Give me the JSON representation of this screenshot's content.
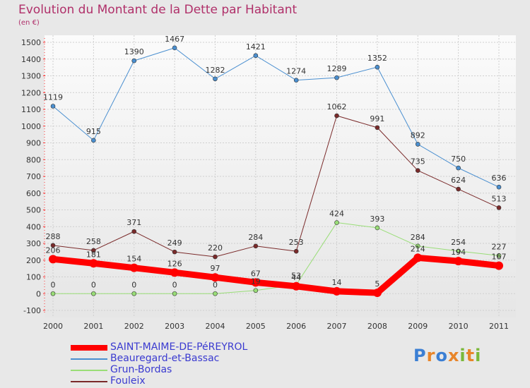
{
  "title": "Evolution du Montant de la Dette par Habitant",
  "subtitle": "(en €)",
  "logo": {
    "letters": [
      "P",
      "r",
      "o",
      "x",
      "i",
      "t",
      "i"
    ],
    "colors": [
      "#3b7fd4",
      "#e8852a",
      "#3b7fd4",
      "#e8852a",
      "#7ab83a",
      "#e8852a",
      "#7ab83a"
    ]
  },
  "chart_data": {
    "type": "line",
    "x": [
      "2000",
      "2001",
      "2002",
      "2003",
      "2004",
      "2005",
      "2006",
      "2007",
      "2008",
      "2009",
      "2010",
      "2011"
    ],
    "y_ticks": [
      "-100",
      "0",
      "100",
      "200",
      "300",
      "400",
      "500",
      "600",
      "700",
      "800",
      "900",
      "1000",
      "1100",
      "1200",
      "1300",
      "1400",
      "1500"
    ],
    "ylim": [
      -100,
      1500
    ],
    "grid": true,
    "legend_position": "bottom-left",
    "series": [
      {
        "name": "SAINT-MAIME-DE-PéREYROL",
        "color": "#ff0000",
        "width": 9,
        "values": [
          206,
          181,
          154,
          126,
          97,
          67,
          44,
          14,
          5,
          214,
          194,
          167
        ],
        "labels": [
          "206",
          "181",
          "154",
          "126",
          "97",
          "67",
          "44",
          "14",
          "5",
          "214",
          "194",
          "167"
        ]
      },
      {
        "name": "Beauregard-et-Bassac",
        "color": "#4a8fd0",
        "width": 1,
        "values": [
          1119,
          915,
          1390,
          1467,
          1282,
          1421,
          1274,
          1289,
          1352,
          892,
          750,
          636
        ],
        "labels": [
          "1119",
          "915",
          "1390",
          "1467",
          "1282",
          "1421",
          "1274",
          "1289",
          "1352",
          "892",
          "750",
          "636"
        ]
      },
      {
        "name": "Grun-Bordas",
        "color": "#99dd77",
        "width": 1,
        "values": [
          0,
          0,
          0,
          0,
          0,
          19,
          53,
          424,
          393,
          284,
          254,
          227
        ],
        "labels": [
          "0",
          "0",
          "0",
          "0",
          "0",
          "19",
          "53",
          "424",
          "393",
          "284",
          "254",
          "227"
        ]
      },
      {
        "name": "Fouleix",
        "color": "#7a2a2a",
        "width": 1,
        "values": [
          288,
          258,
          371,
          249,
          220,
          284,
          253,
          1062,
          991,
          735,
          624,
          513
        ],
        "labels": [
          "288",
          "258",
          "371",
          "249",
          "220",
          "284",
          "253",
          "1062",
          "991",
          "735",
          "624",
          "513"
        ]
      }
    ]
  }
}
